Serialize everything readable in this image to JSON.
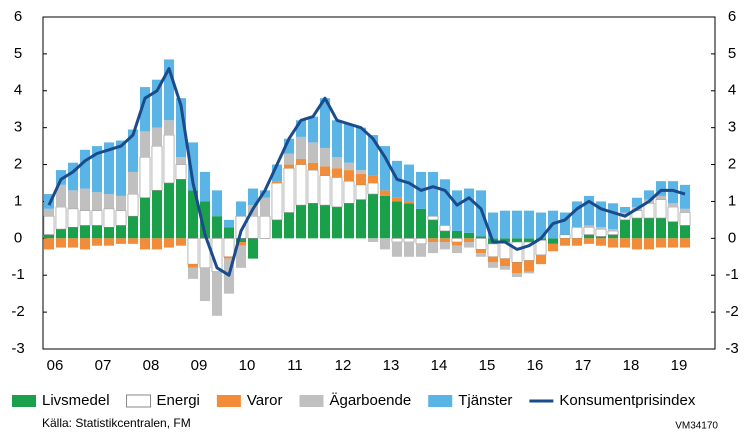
{
  "chart_data": {
    "type": "bar",
    "stacked": true,
    "categories": [
      null,
      "06",
      null,
      null,
      null,
      "07",
      null,
      null,
      null,
      "08",
      null,
      null,
      null,
      "09",
      null,
      null,
      null,
      "10",
      null,
      null,
      null,
      "11",
      null,
      null,
      null,
      "12",
      null,
      null,
      null,
      "13",
      null,
      null,
      null,
      "14",
      null,
      null,
      null,
      "15",
      null,
      null,
      null,
      "16",
      null,
      null,
      null,
      "17",
      null,
      null,
      null,
      "18",
      null,
      null,
      null,
      "19"
    ],
    "ylim": [
      -3,
      6
    ],
    "yticks": [
      -3,
      -2,
      -1,
      0,
      1,
      2,
      3,
      4,
      5,
      6
    ],
    "y2lim": [
      -3,
      6
    ],
    "y2ticks": [
      -3,
      -2,
      -1,
      0,
      1,
      2,
      3,
      4,
      5,
      6
    ],
    "legend": "bottom",
    "series": [
      {
        "name": "Livsmedel",
        "color": "#1aa04a",
        "values": [
          0.1,
          0.25,
          0.3,
          0.35,
          0.35,
          0.3,
          0.35,
          0.6,
          1.1,
          1.3,
          1.5,
          1.6,
          1.3,
          1.0,
          0.6,
          0.3,
          -0.1,
          -0.55,
          0.0,
          0.5,
          0.7,
          0.9,
          0.95,
          0.9,
          0.85,
          0.95,
          1.05,
          1.2,
          1.15,
          1.0,
          0.95,
          0.8,
          0.5,
          0.2,
          0.2,
          0.15,
          0.05,
          -0.15,
          -0.1,
          -0.1,
          -0.1,
          -0.05,
          -0.15,
          0.0,
          0.0,
          0.1,
          0.05,
          0.1,
          0.5,
          0.55,
          0.55,
          0.55,
          0.45,
          0.35
        ]
      },
      {
        "name": "Energi",
        "color": "#ffffff",
        "values": [
          0.5,
          0.6,
          0.5,
          0.4,
          0.4,
          0.5,
          0.4,
          0.6,
          1.1,
          1.2,
          1.3,
          0.4,
          -0.7,
          -0.8,
          -0.9,
          -0.5,
          0.6,
          0.6,
          0.6,
          1.0,
          1.2,
          1.1,
          0.9,
          0.8,
          0.8,
          0.6,
          0.4,
          0.3,
          0.0,
          -0.1,
          -0.1,
          -0.15,
          0.1,
          0.15,
          -0.1,
          0.0,
          -0.3,
          -0.35,
          -0.45,
          -0.55,
          -0.5,
          -0.4,
          0.0,
          0.1,
          0.3,
          0.2,
          0.2,
          0.1,
          0.15,
          0.2,
          0.4,
          0.5,
          0.4,
          0.35
        ]
      },
      {
        "name": "Varor",
        "color": "#f28c38",
        "values": [
          -0.3,
          -0.25,
          -0.25,
          -0.3,
          -0.2,
          -0.2,
          -0.15,
          -0.15,
          -0.3,
          -0.3,
          -0.25,
          -0.2,
          -0.1,
          0.0,
          0.0,
          -0.05,
          -0.1,
          0.0,
          0.0,
          0.05,
          0.1,
          0.15,
          0.2,
          0.25,
          0.25,
          0.3,
          0.3,
          0.2,
          0.15,
          0.1,
          0.05,
          0.0,
          -0.1,
          -0.1,
          -0.1,
          -0.1,
          -0.1,
          -0.15,
          -0.2,
          -0.3,
          -0.3,
          -0.25,
          -0.2,
          -0.2,
          -0.2,
          -0.15,
          -0.2,
          -0.25,
          -0.25,
          -0.3,
          -0.3,
          -0.25,
          -0.25,
          -0.25
        ]
      },
      {
        "name": "Ägarboende",
        "color": "#c0c0c0",
        "values": [
          0.2,
          0.6,
          0.5,
          0.6,
          0.5,
          0.4,
          0.4,
          0.6,
          0.7,
          0.5,
          0.4,
          0.2,
          -0.3,
          -0.9,
          -1.2,
          -0.95,
          -0.6,
          0.3,
          0.5,
          0.0,
          0.3,
          0.6,
          0.55,
          0.5,
          0.3,
          0.2,
          0.1,
          -0.1,
          -0.3,
          -0.4,
          -0.4,
          -0.35,
          -0.3,
          -0.2,
          -0.2,
          -0.15,
          -0.1,
          -0.15,
          -0.1,
          -0.1,
          -0.05,
          0.0,
          0.0,
          0.0,
          0.0,
          0.05,
          0.05,
          0.05,
          0.05,
          0.1,
          0.1,
          0.1,
          0.1,
          0.1
        ]
      },
      {
        "name": "Tjänster",
        "color": "#5ab4e5",
        "values": [
          0.4,
          0.4,
          0.75,
          1.05,
          1.25,
          1.4,
          1.5,
          1.15,
          1.2,
          1.3,
          1.65,
          1.6,
          1.3,
          0.8,
          0.7,
          0.2,
          0.4,
          0.45,
          0.2,
          0.45,
          0.4,
          0.45,
          0.7,
          1.35,
          1.0,
          1.05,
          1.15,
          1.1,
          1.2,
          1.0,
          1.0,
          1.0,
          1.2,
          1.25,
          1.1,
          1.2,
          1.25,
          0.7,
          0.75,
          0.75,
          0.75,
          0.7,
          0.75,
          0.6,
          0.7,
          0.8,
          0.7,
          0.7,
          0.15,
          0.25,
          0.25,
          0.4,
          0.6,
          0.65
        ]
      },
      {
        "name": "Konsumentprisindex",
        "color": "#1a4b8c",
        "type": "line",
        "values": [
          0.9,
          1.6,
          1.8,
          2.1,
          2.3,
          2.4,
          2.5,
          2.8,
          3.8,
          4.0,
          4.6,
          3.6,
          1.5,
          0.1,
          -0.8,
          -1.0,
          0.2,
          0.8,
          1.3,
          2.0,
          2.7,
          3.2,
          3.3,
          3.8,
          3.2,
          3.1,
          3.0,
          2.7,
          2.2,
          1.6,
          1.5,
          1.3,
          1.4,
          1.3,
          0.9,
          1.1,
          0.8,
          -0.1,
          -0.1,
          -0.3,
          -0.2,
          0.0,
          0.4,
          0.5,
          0.8,
          1.0,
          0.8,
          0.7,
          0.6,
          0.8,
          1.0,
          1.3,
          1.3,
          1.2
        ]
      }
    ],
    "source": "Källa: Statistikcentralen, FM",
    "code": "VM34170"
  }
}
